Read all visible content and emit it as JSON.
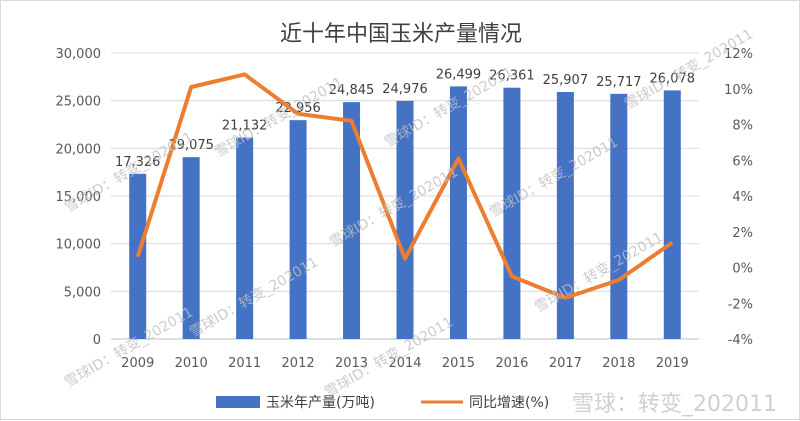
{
  "chart_data": {
    "type": "bar+line",
    "title": "近十年中国玉米产量情况",
    "categories": [
      "2009",
      "2010",
      "2011",
      "2012",
      "2013",
      "2014",
      "2015",
      "2016",
      "2017",
      "2018",
      "2019"
    ],
    "series": [
      {
        "name": "玉米年产量(万吨)",
        "type": "bar",
        "axis": "left",
        "values": [
          17326,
          19075,
          21132,
          22956,
          24845,
          24976,
          26499,
          26361,
          25907,
          25717,
          26078
        ],
        "labels": [
          "17,326",
          "19,075",
          "21,132",
          "22,956",
          "24,845",
          "24,976",
          "26,499",
          "26,361",
          "25,907",
          "25,717",
          "26,078"
        ]
      },
      {
        "name": "同比增速(%)",
        "type": "line",
        "axis": "right",
        "values": [
          0.6,
          10.1,
          10.8,
          8.6,
          8.2,
          0.5,
          6.1,
          -0.5,
          -1.7,
          -0.7,
          1.4
        ]
      }
    ],
    "y_left": {
      "ylim": [
        0,
        30000
      ],
      "ticks": [
        "0",
        "5,000",
        "10,000",
        "15,000",
        "20,000",
        "25,000",
        "30,000"
      ]
    },
    "y_right": {
      "ylim": [
        -4,
        12
      ],
      "ticks": [
        "-4%",
        "-2%",
        "0%",
        "2%",
        "4%",
        "6%",
        "8%",
        "10%",
        "12%"
      ]
    },
    "colors": {
      "bar": "#4472c4",
      "line": "#ed7d31"
    },
    "legend_position": "bottom"
  },
  "watermark": {
    "text": "雪球ID：转变_202011",
    "corner": "雪球：转变_202011"
  }
}
